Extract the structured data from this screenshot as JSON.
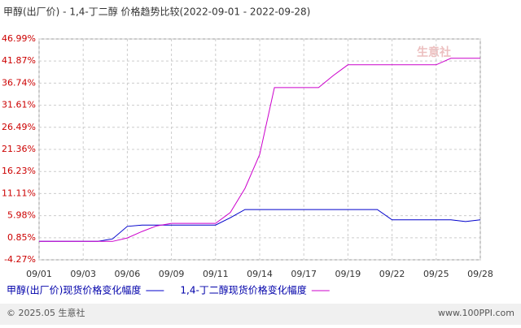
{
  "chart_data": {
    "type": "line",
    "title": "甲醇(出厂价) - 1,4-丁二醇 价格趋势比较(2022-09-01 - 2022-09-28)",
    "categories": [
      "09/01",
      null,
      null,
      "09/03",
      null,
      null,
      "09/06",
      null,
      null,
      "09/09",
      null,
      null,
      "09/11",
      null,
      null,
      "09/14",
      null,
      null,
      "09/17",
      null,
      null,
      "09/19",
      null,
      null,
      "09/22",
      null,
      null,
      "09/25",
      null,
      null,
      "09/28"
    ],
    "series": [
      {
        "name": "甲醇(出厂价)现货价格变化幅度",
        "color": "#0000cc",
        "values": [
          0,
          0,
          0,
          0,
          0,
          0.6,
          3.5,
          3.8,
          3.8,
          3.8,
          3.8,
          3.8,
          3.8,
          5.5,
          7.4,
          7.4,
          7.4,
          7.4,
          7.4,
          7.4,
          7.4,
          7.4,
          7.4,
          7.4,
          5.0,
          5.0,
          5.0,
          5.0,
          5.0,
          4.6,
          5.0
        ]
      },
      {
        "name": "1,4-丁二醇现货价格变化幅度",
        "color": "#cc00cc",
        "values": [
          0,
          0,
          0,
          0,
          0,
          0,
          0.8,
          2.3,
          3.6,
          4.2,
          4.2,
          4.2,
          4.2,
          6.7,
          12.3,
          20.2,
          35.7,
          35.7,
          35.7,
          35.7,
          38.5,
          41.0,
          41.0,
          41.0,
          41.0,
          41.0,
          41.0,
          41.0,
          42.5,
          42.5,
          42.5
        ]
      }
    ],
    "ylim": [
      -4.27,
      46.99
    ],
    "yticks": [
      {
        "value": -4.27,
        "label": "-4.27%"
      },
      {
        "value": 0.85,
        "label": "0.85%"
      },
      {
        "value": 5.98,
        "label": "5.98%"
      },
      {
        "value": 11.11,
        "label": "11.11%"
      },
      {
        "value": 16.23,
        "label": "16.23%"
      },
      {
        "value": 21.36,
        "label": "21.36%"
      },
      {
        "value": 26.49,
        "label": "26.49%"
      },
      {
        "value": 31.61,
        "label": "31.61%"
      },
      {
        "value": 36.74,
        "label": "36.74%"
      },
      {
        "value": 41.87,
        "label": "41.87%"
      },
      {
        "value": 46.99,
        "label": "46.99%"
      }
    ],
    "grid": true,
    "watermark": "生意社",
    "footer_left": "© 2025.05 生意社",
    "footer_right": "www.100PPI.com"
  }
}
